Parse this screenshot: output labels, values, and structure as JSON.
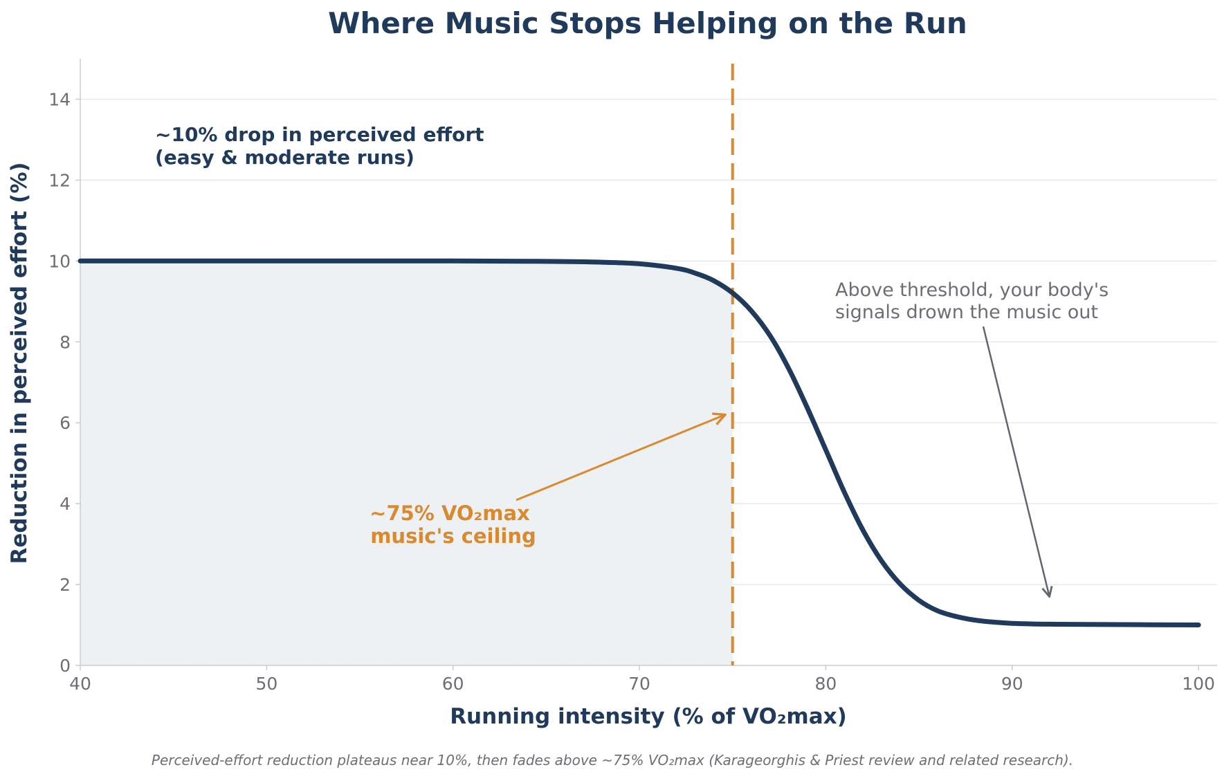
{
  "colors": {
    "curve": "#1f3a5a",
    "threshold": "#d9892f",
    "fill": "#edf1f4",
    "grid": "#e6e9ec",
    "axis": "#c9cdd2",
    "gray_arrow": "#5f6670"
  },
  "chart_data": {
    "type": "line",
    "title": "Where Music Stops Helping on the Run",
    "xlabel": "Running intensity (% of VO₂max)",
    "ylabel": "Reduction in perceived effort (%)",
    "xlim": [
      40,
      101
    ],
    "ylim": [
      0,
      15
    ],
    "xticks": [
      40,
      50,
      60,
      70,
      80,
      90,
      100
    ],
    "yticks": [
      0,
      2,
      4,
      6,
      8,
      10,
      12,
      14
    ],
    "grid": "horizontal",
    "series": [
      {
        "x": [
          40,
          50,
          60,
          65,
          68,
          70,
          72,
          73,
          74,
          75,
          76,
          77,
          78,
          79,
          80,
          81,
          82,
          83,
          84,
          85,
          86,
          87,
          88,
          89,
          90,
          92,
          95,
          100
        ],
        "values": [
          10.0,
          10.0,
          10.0,
          9.99,
          9.97,
          9.93,
          9.82,
          9.7,
          9.51,
          9.21,
          8.77,
          8.16,
          7.35,
          6.38,
          5.33,
          4.28,
          3.34,
          2.58,
          2.01,
          1.61,
          1.35,
          1.21,
          1.12,
          1.07,
          1.04,
          1.02,
          1.01,
          1.0
        ]
      }
    ],
    "shaded_region": {
      "x_from": 40,
      "x_to": 75
    },
    "threshold_x": 75,
    "annotations": [
      {
        "id": "plateau",
        "lines": [
          "~10% drop in perceived effort",
          "(easy & moderate runs)"
        ]
      },
      {
        "id": "ceiling",
        "lines": [
          "~75% VO₂max",
          "music's ceiling"
        ],
        "arrow_to": [
          74.6,
          6.2
        ]
      },
      {
        "id": "above",
        "lines": [
          "Above threshold, your body's",
          "signals drown the music out"
        ],
        "arrow_to": [
          92,
          1.7
        ]
      }
    ],
    "caption": "Perceived-effort reduction plateaus near 10%, then fades above ~75% VO₂max (Karageorghis & Priest review and related research)."
  }
}
